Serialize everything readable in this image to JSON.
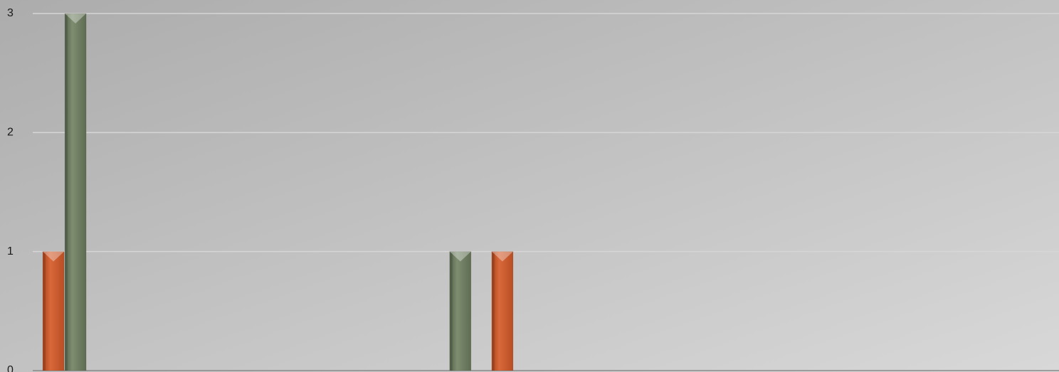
{
  "chart_data": {
    "type": "bar",
    "title": "",
    "xlabel": "",
    "ylabel": "",
    "ylim": [
      0,
      3
    ],
    "y_ticks": [
      {
        "value": 0,
        "label": "0"
      },
      {
        "value": 1,
        "label": "1"
      },
      {
        "value": 2,
        "label": "2"
      },
      {
        "value": 3,
        "label": "3"
      }
    ],
    "grid": true,
    "legend": "none",
    "categories": [
      "",
      "",
      "",
      "",
      "",
      "",
      "",
      "",
      "",
      "",
      "",
      "",
      "",
      "",
      "",
      ""
    ],
    "series": [
      {
        "color": "#c55a2b",
        "values": [
          1,
          0,
          0,
          0,
          0,
          0,
          0,
          1,
          0,
          0,
          0,
          0,
          0,
          0,
          0,
          0
        ]
      },
      {
        "color": "#6e7d62",
        "values": [
          3,
          0,
          0,
          0,
          0,
          0,
          1,
          0,
          0,
          0,
          0,
          0,
          0,
          0,
          0,
          0
        ]
      }
    ]
  }
}
